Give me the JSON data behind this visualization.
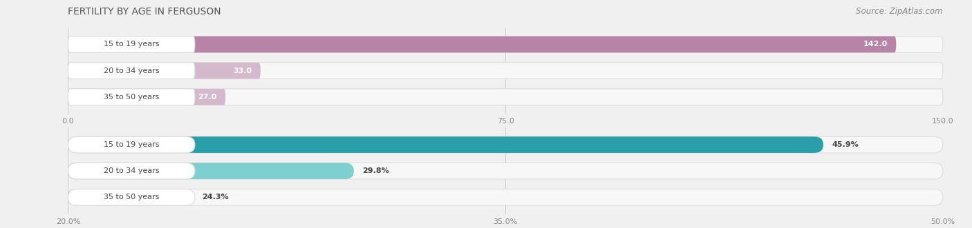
{
  "title": "FERTILITY BY AGE IN FERGUSON",
  "source": "Source: ZipAtlas.com",
  "top_chart": {
    "categories": [
      "15 to 19 years",
      "20 to 34 years",
      "35 to 50 years"
    ],
    "values": [
      142.0,
      33.0,
      27.0
    ],
    "value_labels": [
      "142.0",
      "33.0",
      "27.0"
    ],
    "bar_color_main": "#b784a7",
    "bar_color_light": "#d4b8cc",
    "xlim": [
      0.0,
      150.0
    ],
    "xticks": [
      0.0,
      75.0,
      150.0
    ],
    "xticklabels": [
      "0.0",
      "75.0",
      "150.0"
    ]
  },
  "bottom_chart": {
    "categories": [
      "15 to 19 years",
      "20 to 34 years",
      "35 to 50 years"
    ],
    "values": [
      45.9,
      29.8,
      24.3
    ],
    "labels": [
      "45.9%",
      "29.8%",
      "24.3%"
    ],
    "bar_color_main": "#2a9faa",
    "bar_color_light": "#7ecfcf",
    "xlim": [
      20.0,
      50.0
    ],
    "xticks": [
      20.0,
      35.0,
      50.0
    ],
    "xticklabels": [
      "20.0%",
      "35.0%",
      "50.0%"
    ]
  },
  "bg_color": "#f0f0f0",
  "bar_bg_color": "#f7f7f7",
  "label_bg_color": "#ffffff",
  "title_fontsize": 10,
  "source_fontsize": 8.5,
  "label_fontsize": 8,
  "tick_fontsize": 8
}
